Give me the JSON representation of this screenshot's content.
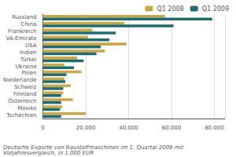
{
  "chart_data": {
    "type": "bar",
    "orientation": "horizontal",
    "categories": [
      "Russland",
      "China",
      "Frankreich",
      "VA-Emirate",
      "USA",
      "Indien",
      "Türkei",
      "Ukraine",
      "Polen",
      "Niederlande",
      "Schweiz",
      "Finnland",
      "Österreich",
      "Mexiko",
      "Tschechien"
    ],
    "series": [
      {
        "name": "Q1 2008",
        "color": "#C9A84C",
        "values": [
          57000,
          38000,
          23000,
          21000,
          39000,
          29000,
          16000,
          10000,
          18000,
          10000,
          13000,
          9500,
          14000,
          9000,
          20000
        ]
      },
      {
        "name": "Q1 2009",
        "color": "#1F6B6E",
        "values": [
          79000,
          61000,
          34000,
          31000,
          27000,
          25000,
          19000,
          14500,
          11000,
          10500,
          9500,
          8500,
          8500,
          8000,
          8500
        ]
      }
    ],
    "xlim": [
      0,
      85000
    ],
    "xticks": [
      0,
      {
        "value": 20000,
        "label": "20.000"
      },
      {
        "value": 40000,
        "label": "40.000"
      },
      {
        "value": 60000,
        "label": "60.000"
      },
      {
        "value": 80000,
        "label": "80.000"
      }
    ],
    "grid": true,
    "legend": "right",
    "annotations": [
      "Deutsche Exporte von Baustoffmaschinen im 1. Quartal 2009 mit Vorjahresvergleich, in 1.000 EUR"
    ]
  }
}
